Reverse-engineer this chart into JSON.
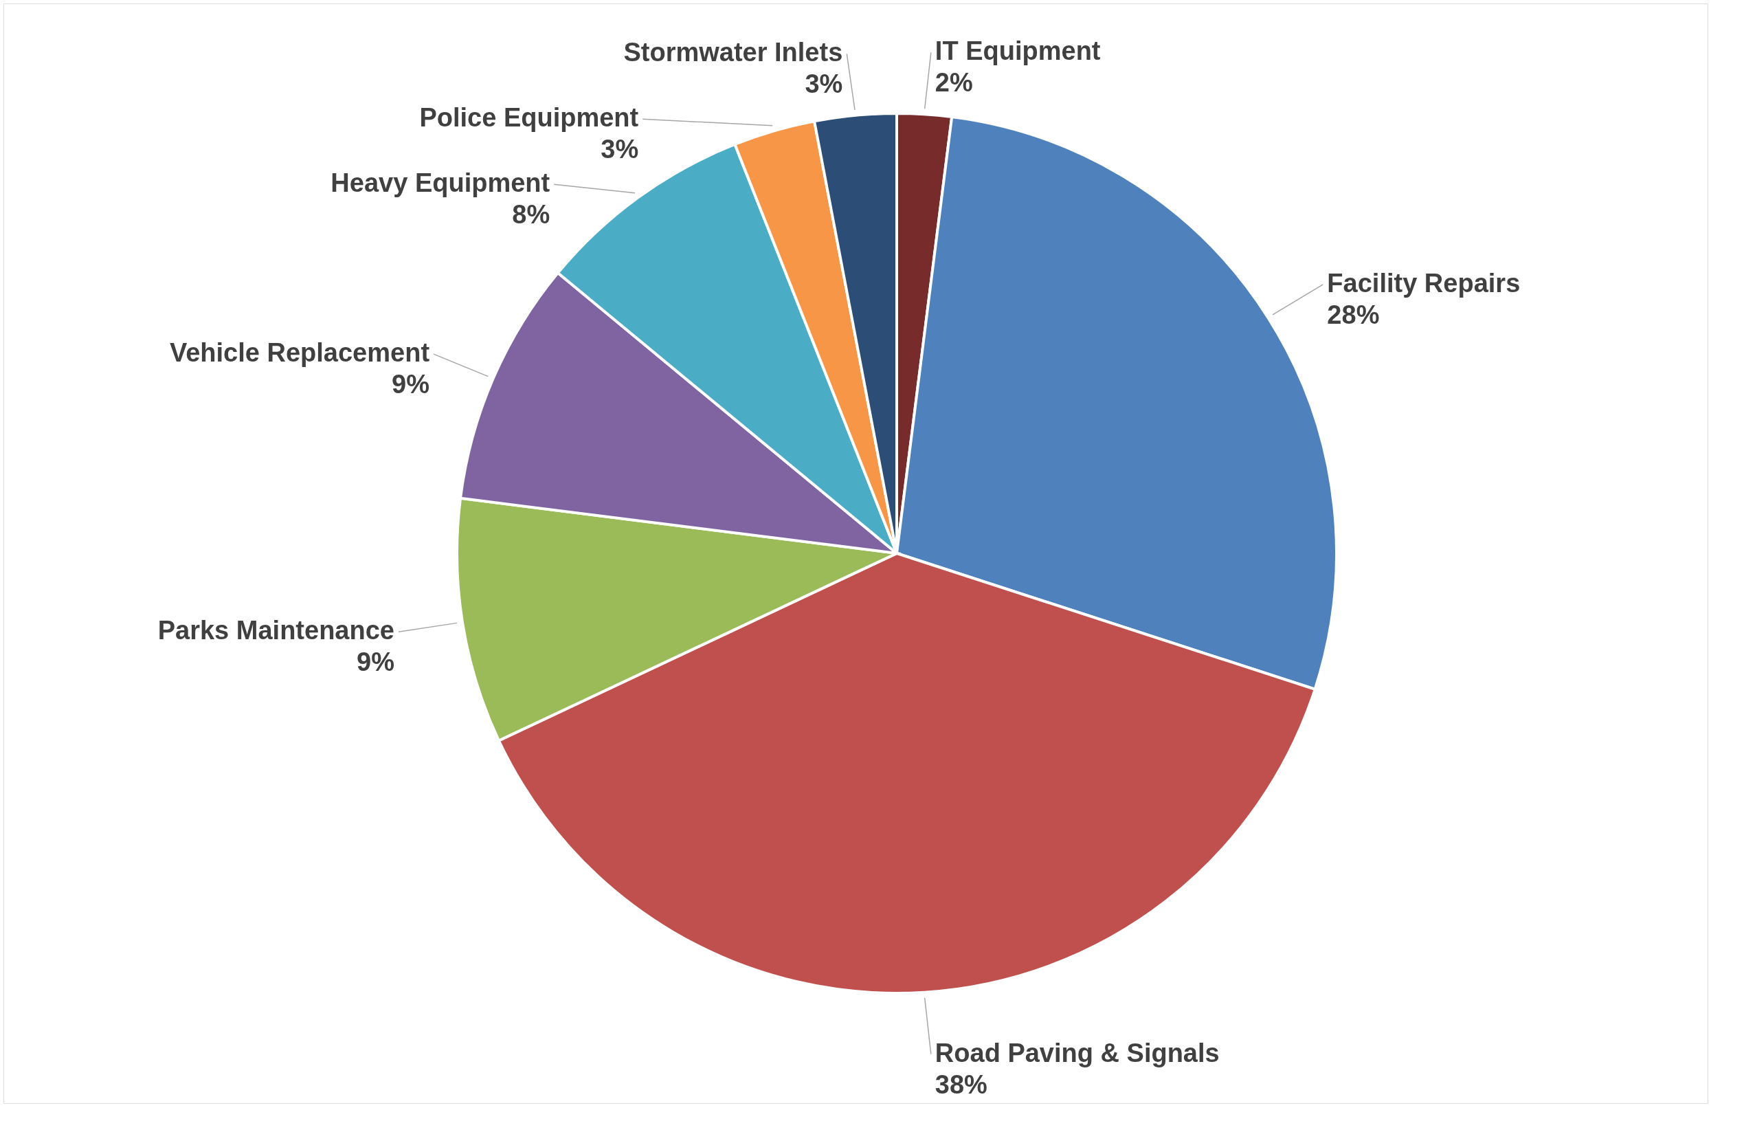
{
  "chart_data": {
    "type": "pie",
    "categories": [
      "IT Equipment",
      "Facility Repairs",
      "Road Paving & Signals",
      "Parks Maintenance",
      "Vehicle Replacement",
      "Heavy Equipment",
      "Police Equipment",
      "Stormwater Inlets"
    ],
    "values": [
      2,
      28,
      38,
      9,
      9,
      8,
      3,
      3
    ],
    "value_labels": [
      "2%",
      "28%",
      "38%",
      "9%",
      "9%",
      "8%",
      "3%",
      "3%"
    ],
    "colors": [
      "#772b2b",
      "#4f81bd",
      "#c0504d",
      "#9bbb59",
      "#8064a2",
      "#4bacc6",
      "#f79646",
      "#2c4d75"
    ]
  }
}
